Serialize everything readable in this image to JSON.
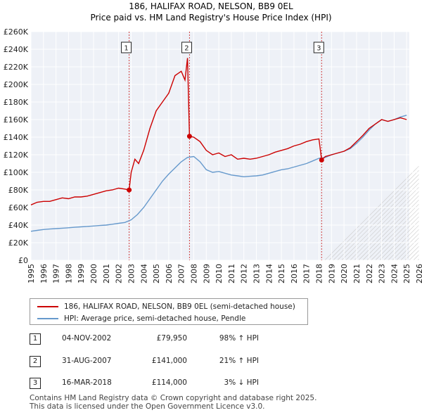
{
  "chart_data": {
    "type": "line",
    "title": "186, HALIFAX ROAD, NELSON, BB9 0EL",
    "subtitle": "Price paid vs. HM Land Registry's House Price Index (HPI)",
    "xlabel": "",
    "ylabel": "",
    "xlim": [
      1995,
      2026
    ],
    "ylim": [
      0,
      260000
    ],
    "y_ticks": [
      0,
      20000,
      40000,
      60000,
      80000,
      100000,
      120000,
      140000,
      160000,
      180000,
      200000,
      220000,
      240000,
      260000
    ],
    "y_tick_labels": [
      "£0",
      "£20K",
      "£40K",
      "£60K",
      "£80K",
      "£100K",
      "£120K",
      "£140K",
      "£160K",
      "£180K",
      "£200K",
      "£220K",
      "£240K",
      "£260K"
    ],
    "x_ticks": [
      1995,
      1996,
      1997,
      1998,
      1999,
      2000,
      2001,
      2002,
      2003,
      2004,
      2005,
      2006,
      2007,
      2008,
      2009,
      2010,
      2011,
      2012,
      2013,
      2014,
      2015,
      2016,
      2017,
      2018,
      2019,
      2020,
      2021,
      2022,
      2023,
      2024,
      2025,
      2026
    ],
    "x_tick_labels": [
      "1995",
      "1996",
      "1997",
      "1998",
      "1999",
      "2000",
      "2001",
      "2002",
      "2003",
      "2004",
      "2005",
      "2006",
      "2007",
      "2008",
      "2009",
      "2010",
      "2011",
      "2012",
      "2013",
      "2014",
      "2015",
      "2016",
      "2017",
      "2018",
      "2019",
      "2020",
      "2021",
      "2022",
      "2023",
      "2024",
      "2025",
      "2026"
    ],
    "grid": true,
    "series": [
      {
        "name": "186, HALIFAX ROAD, NELSON, BB9 0EL (semi-detached house)",
        "color": "#cc0000",
        "x": [
          1995.0,
          1995.5,
          1996.0,
          1996.5,
          1997.0,
          1997.5,
          1998.0,
          1998.5,
          1999.0,
          1999.5,
          2000.0,
          2000.5,
          2001.0,
          2001.5,
          2002.0,
          2002.5,
          2002.84,
          2003.0,
          2003.3,
          2003.6,
          2004.0,
          2004.5,
          2005.0,
          2005.5,
          2006.0,
          2006.5,
          2007.0,
          2007.3,
          2007.5,
          2007.66,
          2008.0,
          2008.5,
          2009.0,
          2009.5,
          2010.0,
          2010.5,
          2011.0,
          2011.5,
          2012.0,
          2012.5,
          2013.0,
          2013.5,
          2014.0,
          2014.5,
          2015.0,
          2015.5,
          2016.0,
          2016.5,
          2017.0,
          2017.5,
          2018.0,
          2018.21,
          2018.5,
          2019.0,
          2019.5,
          2020.0,
          2020.5,
          2021.0,
          2021.5,
          2022.0,
          2022.5,
          2023.0,
          2023.5,
          2024.0,
          2024.5,
          2025.0
        ],
        "values": [
          63000,
          66000,
          67000,
          67000,
          69000,
          71000,
          70000,
          72000,
          72000,
          73000,
          75000,
          77000,
          79000,
          80000,
          82000,
          81000,
          79950,
          100000,
          115000,
          110000,
          125000,
          150000,
          170000,
          180000,
          190000,
          210000,
          215000,
          205000,
          230000,
          141000,
          140000,
          135000,
          125000,
          120000,
          122000,
          118000,
          120000,
          115000,
          116000,
          115000,
          116000,
          118000,
          120000,
          123000,
          125000,
          127000,
          130000,
          132000,
          135000,
          137000,
          138000,
          114000,
          118000,
          120000,
          122000,
          124000,
          128000,
          135000,
          142000,
          150000,
          155000,
          160000,
          158000,
          160000,
          162000,
          160000
        ]
      },
      {
        "name": "HPI: Average price, semi-detached house, Pendle",
        "color": "#6699cc",
        "x": [
          1995.0,
          1995.5,
          1996.0,
          1996.5,
          1997.0,
          1997.5,
          1998.0,
          1998.5,
          1999.0,
          1999.5,
          2000.0,
          2000.5,
          2001.0,
          2001.5,
          2002.0,
          2002.5,
          2003.0,
          2003.5,
          2004.0,
          2004.5,
          2005.0,
          2005.5,
          2006.0,
          2006.5,
          2007.0,
          2007.5,
          2008.0,
          2008.5,
          2009.0,
          2009.5,
          2010.0,
          2010.5,
          2011.0,
          2011.5,
          2012.0,
          2012.5,
          2013.0,
          2013.5,
          2014.0,
          2014.5,
          2015.0,
          2015.5,
          2016.0,
          2016.5,
          2017.0,
          2017.5,
          2018.0,
          2018.5,
          2019.0,
          2019.5,
          2020.0,
          2020.5,
          2021.0,
          2021.5,
          2022.0,
          2022.5,
          2023.0,
          2023.5,
          2024.0,
          2024.5,
          2025.0
        ],
        "values": [
          33000,
          34000,
          35000,
          35500,
          36000,
          36500,
          37000,
          37500,
          38000,
          38500,
          39000,
          39500,
          40000,
          41000,
          42000,
          43000,
          46000,
          52000,
          60000,
          70000,
          80000,
          90000,
          98000,
          105000,
          112000,
          117000,
          118000,
          112000,
          103000,
          100000,
          101000,
          99000,
          97000,
          96000,
          95000,
          95500,
          96000,
          97000,
          99000,
          101000,
          103000,
          104000,
          106000,
          108000,
          110000,
          113000,
          116000,
          117000,
          120000,
          122000,
          124000,
          127000,
          133000,
          140000,
          148000,
          155000,
          160000,
          158000,
          160000,
          163000,
          165000
        ]
      }
    ],
    "annotations": [
      {
        "label": "1",
        "x": 2002.84,
        "value": 79950
      },
      {
        "label": "2",
        "x": 2007.66,
        "value": 141000
      },
      {
        "label": "3",
        "x": 2018.21,
        "value": 114000
      }
    ]
  },
  "legend": {
    "property_label": "186, HALIFAX ROAD, NELSON, BB9 0EL (semi-detached house)",
    "hpi_label": "HPI: Average price, semi-detached house, Pendle"
  },
  "transactions": [
    {
      "num": "1",
      "date": "04-NOV-2002",
      "price": "£79,950",
      "hpi": "98% ↑ HPI"
    },
    {
      "num": "2",
      "date": "31-AUG-2007",
      "price": "£141,000",
      "hpi": "21% ↑ HPI"
    },
    {
      "num": "3",
      "date": "16-MAR-2018",
      "price": "£114,000",
      "hpi": "3% ↓ HPI"
    }
  ],
  "footer": {
    "line1": "Contains HM Land Registry data © Crown copyright and database right 2025.",
    "line2": "This data is licensed under the Open Government Licence v3.0."
  }
}
